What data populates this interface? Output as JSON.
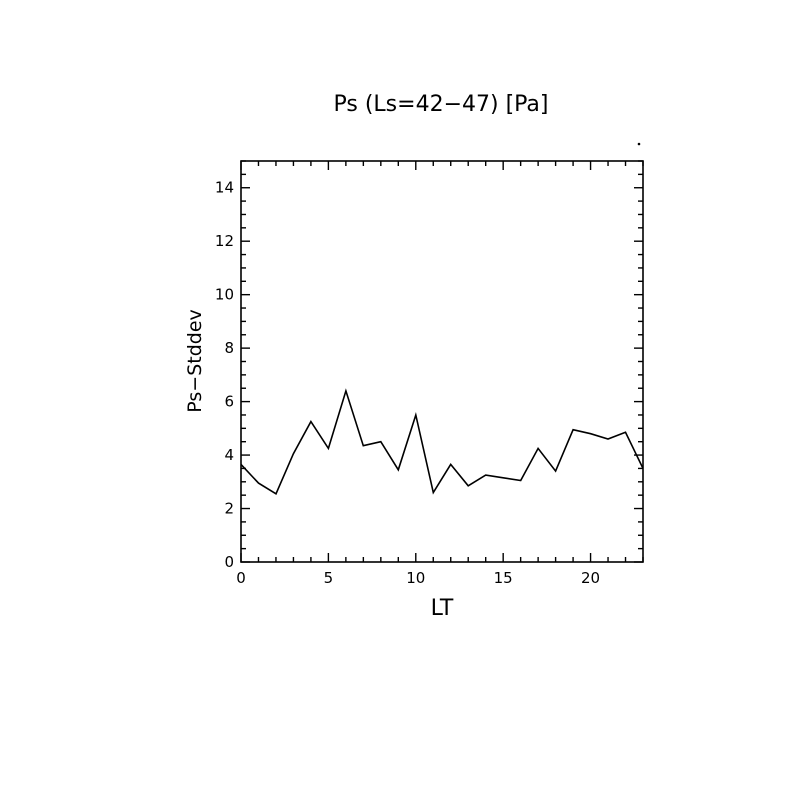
{
  "chart_data": {
    "type": "line",
    "title": "Ps (Ls=42−47) [Pa]",
    "xlabel": "LT",
    "ylabel": "Ps−Stddev",
    "xlim": [
      0,
      23
    ],
    "ylim": [
      0,
      15
    ],
    "x_ticks": [
      "0",
      "5",
      "10",
      "15",
      "20"
    ],
    "y_ticks": [
      "0",
      "2",
      "4",
      "6",
      "8",
      "10",
      "12",
      "14"
    ],
    "grid": false,
    "series": [
      {
        "x": [
          0,
          1,
          2,
          3,
          4,
          5,
          6,
          7,
          8,
          9,
          10,
          11,
          12,
          13,
          14,
          15,
          16,
          17,
          18,
          19,
          20,
          21,
          22,
          23
        ],
        "values": [
          3.65,
          2.95,
          2.55,
          4.05,
          5.25,
          4.25,
          6.4,
          4.35,
          4.5,
          3.45,
          5.5,
          2.6,
          3.65,
          2.85,
          3.25,
          3.15,
          3.05,
          4.25,
          3.4,
          4.95,
          4.8,
          4.6,
          4.85,
          3.5
        ]
      }
    ]
  }
}
